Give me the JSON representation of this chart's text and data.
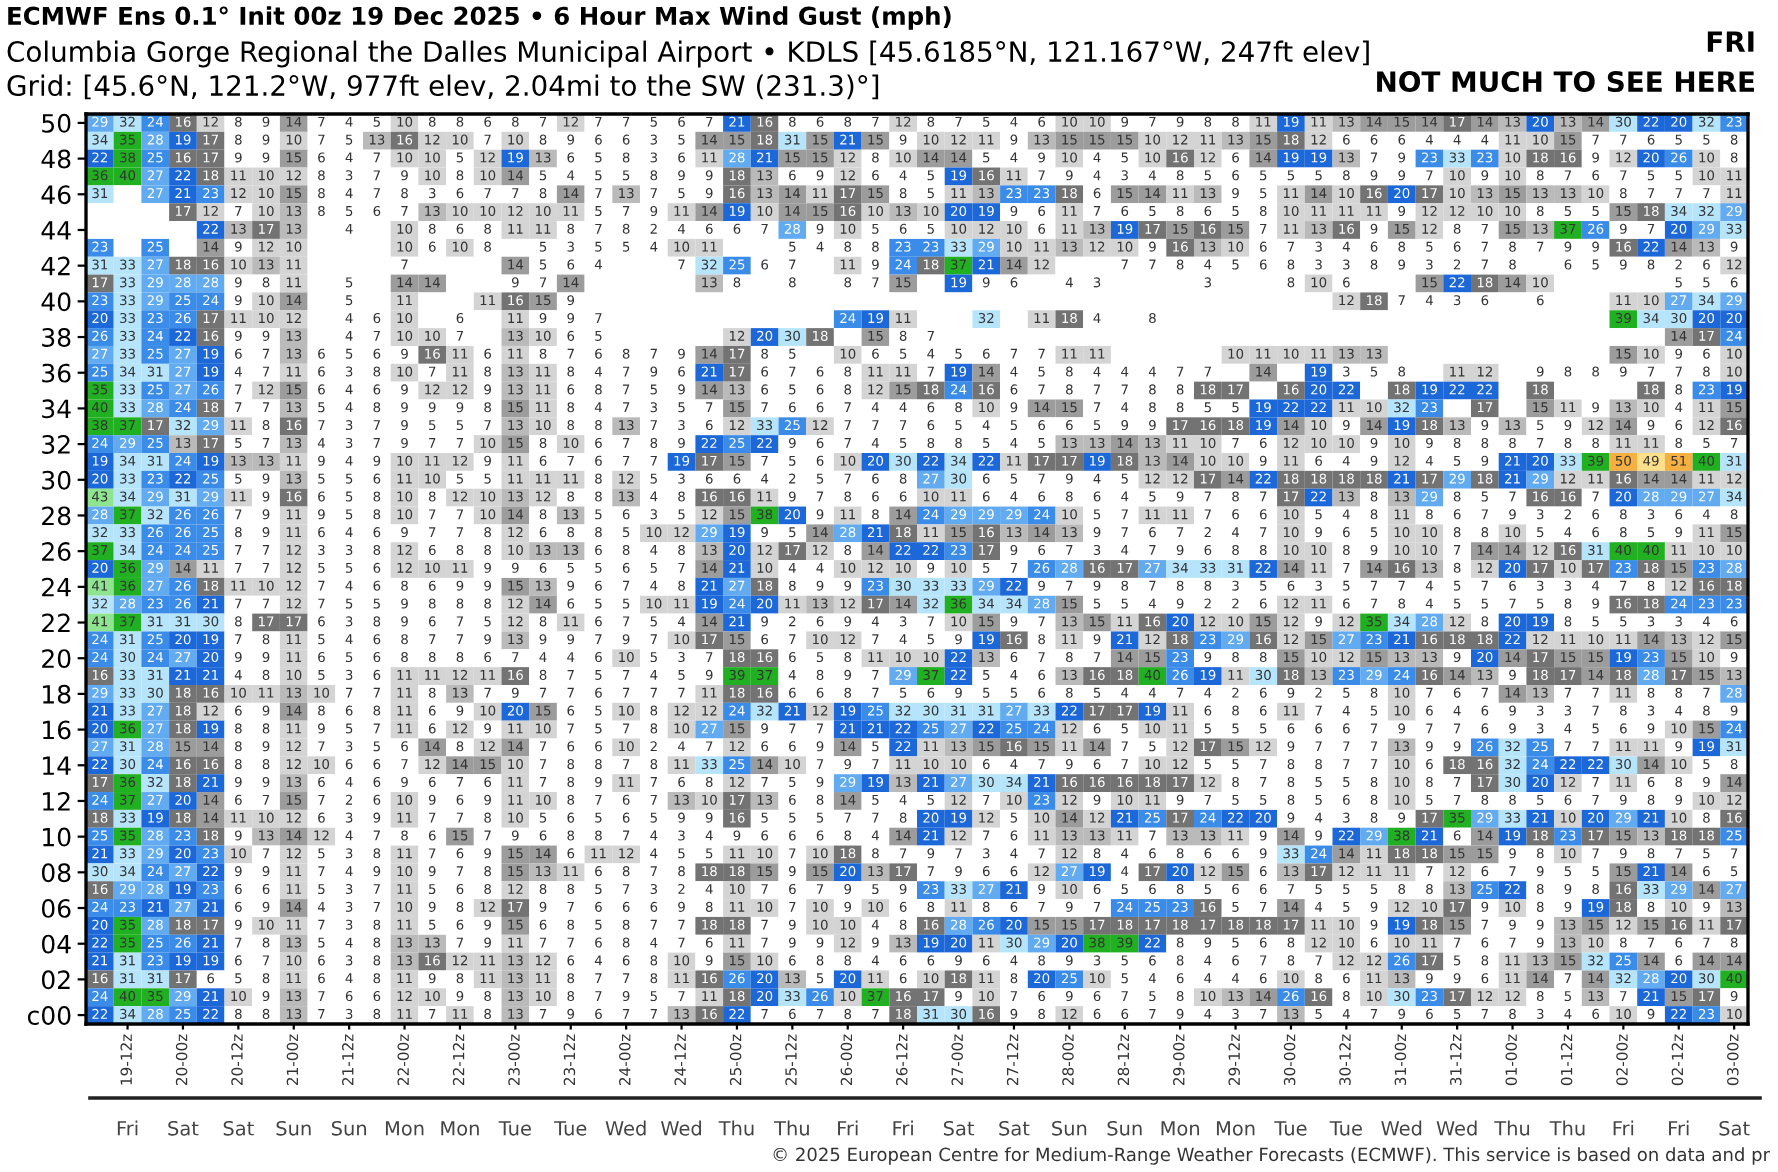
{
  "chart_data": {
    "type": "heatmap",
    "title": "ECMWF Ens 0.1° Init 00z 19 Dec 2025 • 6 Hour Max Wind Gust (mph)",
    "subtitle": "Columbia Gorge Regional the Dalles Municipal Airport • KDLS [45.6185°N, 121.167°W, 247ft elev]\nGrid: [45.6°N, 121.2°W, 977ft elev, 2.04mi to the SW (231.3)°]",
    "categories": [
      null,
      "19-12z",
      null,
      "20-00z",
      null,
      "20-12z",
      null,
      "21-00z",
      null,
      "21-12z",
      null,
      "22-00z",
      null,
      "22-12z",
      null,
      "23-00z",
      null,
      "23-12z",
      null,
      "24-00z",
      null,
      "24-12z",
      null,
      "25-00z",
      null,
      "25-12z",
      null,
      "26-00z",
      null,
      "26-12z",
      null,
      "27-00z",
      null,
      "27-12z",
      null,
      "28-00z",
      null,
      "28-12z",
      null,
      "29-00z",
      null,
      "29-12z",
      null,
      "30-00z",
      null,
      "30-12z",
      null,
      "31-00z",
      null,
      "31-12z",
      null,
      "01-00z",
      null,
      "01-12z",
      null,
      "02-00z",
      null,
      "02-12z",
      null,
      "03-00z"
    ],
    "y_categories": [
      "50",
      null,
      "48",
      null,
      "46",
      null,
      "44",
      null,
      "42",
      null,
      "40",
      null,
      "38",
      null,
      "36",
      null,
      "34",
      null,
      "32",
      null,
      "30",
      null,
      "28",
      null,
      "26",
      null,
      "24",
      null,
      "22",
      null,
      "20",
      null,
      "18",
      null,
      "16",
      null,
      "14",
      null,
      "12",
      null,
      "10",
      null,
      "08",
      null,
      "06",
      null,
      "04",
      null,
      "02",
      null,
      "c00"
    ],
    "data_labels": true,
    "cells": [
      [
        29,
        32,
        24,
        16,
        12,
        8,
        9,
        14,
        7,
        4,
        5,
        10,
        8,
        8,
        6,
        8,
        7,
        12,
        7,
        7,
        5,
        6,
        7,
        21,
        16,
        8,
        6,
        8,
        7,
        12,
        8,
        7,
        5,
        4,
        6,
        10,
        10,
        9,
        7,
        9,
        8,
        8,
        11,
        19,
        11,
        13,
        14,
        15,
        14,
        17,
        14,
        13,
        20,
        13,
        14,
        30,
        22,
        20,
        32,
        23
      ],
      [
        34,
        35,
        28,
        19,
        17,
        8,
        9,
        10,
        7,
        5,
        13,
        16,
        12,
        10,
        7,
        10,
        8,
        9,
        6,
        6,
        3,
        5,
        14,
        15,
        18,
        31,
        15,
        21,
        15,
        9,
        10,
        12,
        11,
        9,
        13,
        15,
        15,
        15,
        10,
        12,
        11,
        13,
        15,
        18,
        12,
        6,
        6,
        6,
        4,
        4,
        4,
        11,
        10,
        15,
        7,
        7,
        6,
        5,
        5,
        8
      ],
      [
        22,
        38,
        25,
        16,
        17,
        9,
        9,
        15,
        6,
        4,
        7,
        10,
        10,
        5,
        12,
        19,
        13,
        6,
        5,
        8,
        3,
        6,
        11,
        28,
        21,
        15,
        15,
        12,
        8,
        10,
        14,
        14,
        5,
        4,
        9,
        10,
        4,
        5,
        10,
        16,
        12,
        6,
        14,
        19,
        19,
        13,
        7,
        9,
        23,
        33,
        23,
        10,
        18,
        16,
        9,
        12,
        20,
        26,
        10,
        8
      ],
      [
        36,
        40,
        27,
        22,
        18,
        11,
        10,
        12,
        8,
        3,
        7,
        9,
        10,
        8,
        10,
        14,
        5,
        4,
        5,
        5,
        8,
        9,
        9,
        18,
        13,
        6,
        9,
        12,
        6,
        4,
        5,
        19,
        16,
        11,
        7,
        9,
        4,
        3,
        4,
        8,
        5,
        6,
        5,
        5,
        5,
        8,
        9,
        9,
        7,
        10,
        9,
        10,
        8,
        7,
        6,
        7,
        5,
        5,
        10,
        11
      ],
      [
        31,
        null,
        27,
        21,
        23,
        12,
        10,
        15,
        8,
        4,
        7,
        8,
        3,
        6,
        7,
        7,
        8,
        14,
        7,
        13,
        7,
        5,
        9,
        16,
        13,
        14,
        11,
        17,
        15,
        8,
        5,
        11,
        13,
        23,
        23,
        18,
        6,
        15,
        14,
        11,
        13,
        9,
        5,
        11,
        14,
        10,
        16,
        20,
        17,
        10,
        13,
        15,
        13,
        13,
        10,
        8,
        7,
        7,
        7,
        11
      ],
      [
        null,
        null,
        null,
        17,
        12,
        7,
        10,
        13,
        8,
        5,
        6,
        7,
        13,
        10,
        10,
        12,
        10,
        11,
        5,
        7,
        9,
        11,
        14,
        19,
        10,
        14,
        15,
        16,
        10,
        13,
        10,
        20,
        19,
        9,
        6,
        11,
        7,
        6,
        5,
        8,
        6,
        5,
        8,
        10,
        11,
        11,
        11,
        9,
        12,
        12,
        10,
        10,
        8,
        5,
        5,
        15,
        18,
        34,
        32,
        29
      ],
      [
        null,
        null,
        null,
        null,
        22,
        13,
        17,
        13,
        null,
        4,
        null,
        10,
        8,
        6,
        8,
        11,
        11,
        8,
        7,
        8,
        2,
        4,
        6,
        6,
        7,
        28,
        9,
        10,
        5,
        6,
        5,
        10,
        12,
        10,
        6,
        11,
        13,
        19,
        17,
        15,
        16,
        15,
        7,
        11,
        13,
        16,
        9,
        15,
        12,
        8,
        7,
        15,
        13,
        37,
        26,
        9,
        7,
        20,
        29,
        33
      ],
      [
        23,
        null,
        25,
        null,
        14,
        9,
        12,
        10,
        null,
        null,
        null,
        10,
        6,
        10,
        8,
        null,
        5,
        3,
        5,
        5,
        4,
        10,
        11,
        null,
        null,
        5,
        4,
        8,
        8,
        23,
        23,
        33,
        29,
        10,
        11,
        13,
        12,
        10,
        9,
        16,
        13,
        10,
        6,
        7,
        3,
        4,
        6,
        8,
        5,
        6,
        7,
        8,
        7,
        9,
        9,
        16,
        22,
        14,
        13,
        9
      ],
      [
        31,
        33,
        27,
        18,
        16,
        10,
        13,
        11,
        null,
        null,
        null,
        7,
        null,
        null,
        null,
        14,
        5,
        6,
        4,
        null,
        null,
        7,
        32,
        25,
        6,
        7,
        null,
        11,
        9,
        24,
        18,
        37,
        21,
        14,
        12,
        null,
        null,
        7,
        7,
        8,
        4,
        5,
        6,
        8,
        3,
        3,
        8,
        9,
        3,
        2,
        7,
        8,
        null,
        6,
        5,
        9,
        8,
        2,
        6,
        12
      ],
      [
        17,
        33,
        29,
        28,
        28,
        9,
        8,
        11,
        null,
        5,
        null,
        14,
        14,
        null,
        null,
        9,
        7,
        14,
        null,
        null,
        null,
        null,
        13,
        8,
        null,
        8,
        null,
        8,
        7,
        15,
        null,
        19,
        9,
        6,
        null,
        4,
        3,
        null,
        null,
        null,
        3,
        null,
        null,
        8,
        10,
        6,
        null,
        null,
        15,
        22,
        18,
        14,
        10,
        null,
        null,
        null,
        null,
        5,
        5,
        6
      ],
      [
        23,
        33,
        29,
        25,
        24,
        9,
        10,
        14,
        null,
        5,
        null,
        11,
        null,
        null,
        11,
        16,
        15,
        9,
        null,
        null,
        null,
        null,
        null,
        null,
        null,
        null,
        null,
        null,
        null,
        null,
        null,
        null,
        null,
        null,
        null,
        null,
        null,
        null,
        null,
        null,
        null,
        null,
        null,
        null,
        null,
        12,
        18,
        7,
        4,
        3,
        6,
        null,
        6,
        null,
        null,
        11,
        10,
        27,
        34,
        29
      ],
      [
        20,
        33,
        23,
        26,
        17,
        11,
        10,
        12,
        null,
        4,
        6,
        10,
        null,
        6,
        null,
        11,
        9,
        9,
        7,
        null,
        null,
        null,
        null,
        null,
        null,
        null,
        null,
        24,
        19,
        11,
        null,
        null,
        32,
        null,
        11,
        18,
        4,
        null,
        8,
        null,
        null,
        null,
        null,
        null,
        null,
        null,
        null,
        null,
        null,
        null,
        null,
        null,
        null,
        null,
        null,
        39,
        34,
        30,
        20,
        20
      ],
      [
        26,
        33,
        24,
        22,
        16,
        9,
        9,
        13,
        null,
        4,
        7,
        10,
        10,
        7,
        null,
        13,
        10,
        6,
        5,
        null,
        null,
        null,
        null,
        12,
        20,
        30,
        18,
        null,
        15,
        8,
        7,
        null,
        null,
        null,
        null,
        null,
        null,
        null,
        null,
        null,
        null,
        null,
        null,
        null,
        null,
        null,
        null,
        null,
        null,
        null,
        null,
        null,
        null,
        null,
        null,
        null,
        null,
        14,
        17,
        24
      ],
      [
        27,
        33,
        25,
        27,
        19,
        6,
        7,
        13,
        6,
        5,
        6,
        9,
        16,
        11,
        6,
        11,
        8,
        7,
        6,
        8,
        7,
        9,
        14,
        17,
        8,
        5,
        null,
        10,
        6,
        5,
        4,
        5,
        6,
        7,
        7,
        11,
        11,
        null,
        null,
        null,
        null,
        10,
        11,
        10,
        11,
        13,
        13,
        null,
        null,
        null,
        null,
        null,
        null,
        null,
        null,
        15,
        10,
        9,
        6,
        10
      ],
      [
        25,
        34,
        31,
        27,
        19,
        4,
        7,
        11,
        6,
        3,
        8,
        10,
        7,
        11,
        8,
        13,
        11,
        8,
        4,
        7,
        9,
        6,
        21,
        17,
        6,
        7,
        6,
        8,
        11,
        11,
        7,
        19,
        14,
        4,
        5,
        8,
        4,
        4,
        4,
        7,
        7,
        null,
        14,
        null,
        19,
        3,
        5,
        8,
        null,
        11,
        12,
        null,
        9,
        8,
        8,
        9,
        7,
        7,
        8,
        10
      ],
      [
        35,
        33,
        25,
        27,
        26,
        7,
        12,
        15,
        6,
        4,
        6,
        9,
        12,
        12,
        9,
        13,
        11,
        6,
        8,
        7,
        5,
        9,
        14,
        13,
        6,
        5,
        6,
        8,
        12,
        15,
        18,
        24,
        16,
        6,
        7,
        8,
        7,
        7,
        8,
        8,
        18,
        17,
        null,
        16,
        20,
        22,
        null,
        18,
        19,
        22,
        22,
        null,
        18,
        null,
        null,
        null,
        18,
        8,
        23,
        19
      ],
      [
        40,
        33,
        28,
        24,
        18,
        7,
        7,
        13,
        5,
        4,
        8,
        9,
        9,
        9,
        8,
        15,
        11,
        8,
        4,
        7,
        3,
        5,
        7,
        15,
        7,
        6,
        6,
        7,
        4,
        4,
        6,
        8,
        10,
        9,
        14,
        15,
        7,
        4,
        8,
        8,
        5,
        5,
        19,
        22,
        22,
        11,
        10,
        32,
        23,
        null,
        17,
        null,
        15,
        11,
        9,
        13,
        10,
        4,
        11,
        15
      ],
      [
        38,
        37,
        17,
        32,
        29,
        11,
        8,
        16,
        7,
        3,
        7,
        9,
        5,
        5,
        7,
        13,
        10,
        8,
        8,
        13,
        7,
        3,
        6,
        12,
        33,
        25,
        12,
        7,
        7,
        7,
        6,
        5,
        4,
        5,
        6,
        6,
        5,
        9,
        9,
        17,
        16,
        18,
        19,
        14,
        10,
        9,
        14,
        19,
        18,
        13,
        9,
        13,
        5,
        9,
        12,
        14,
        9,
        6,
        12,
        16
      ],
      [
        24,
        29,
        25,
        13,
        17,
        5,
        7,
        13,
        4,
        3,
        7,
        9,
        7,
        7,
        10,
        15,
        8,
        10,
        6,
        7,
        8,
        9,
        22,
        25,
        22,
        9,
        6,
        7,
        4,
        5,
        8,
        8,
        5,
        4,
        5,
        13,
        13,
        14,
        13,
        11,
        10,
        7,
        6,
        12,
        10,
        10,
        9,
        10,
        9,
        8,
        8,
        8,
        7,
        8,
        8,
        11,
        11,
        8,
        5,
        7
      ],
      [
        19,
        34,
        31,
        24,
        19,
        13,
        13,
        11,
        9,
        4,
        9,
        10,
        11,
        12,
        9,
        11,
        6,
        7,
        6,
        7,
        7,
        19,
        17,
        15,
        7,
        5,
        6,
        10,
        20,
        30,
        22,
        34,
        22,
        11,
        17,
        17,
        19,
        18,
        13,
        14,
        10,
        10,
        9,
        11,
        6,
        4,
        9,
        12,
        4,
        5,
        9,
        21,
        20,
        33,
        39,
        50,
        49,
        51,
        40,
        31
      ],
      [
        20,
        33,
        23,
        22,
        25,
        5,
        9,
        13,
        5,
        5,
        6,
        11,
        10,
        5,
        5,
        11,
        11,
        11,
        8,
        12,
        5,
        3,
        6,
        6,
        4,
        2,
        5,
        7,
        6,
        8,
        27,
        30,
        6,
        5,
        7,
        9,
        4,
        5,
        12,
        12,
        17,
        14,
        22,
        18,
        18,
        18,
        18,
        21,
        17,
        29,
        18,
        21,
        29,
        12,
        11,
        16,
        14,
        14,
        11,
        12
      ],
      [
        43,
        34,
        29,
        31,
        29,
        11,
        9,
        16,
        6,
        5,
        8,
        10,
        8,
        12,
        10,
        13,
        12,
        8,
        8,
        13,
        4,
        8,
        16,
        16,
        11,
        9,
        7,
        8,
        6,
        6,
        10,
        11,
        6,
        4,
        6,
        8,
        6,
        4,
        5,
        9,
        7,
        8,
        7,
        17,
        22,
        13,
        8,
        13,
        29,
        8,
        5,
        7,
        16,
        16,
        7,
        20,
        28,
        29,
        27,
        34
      ],
      [
        28,
        37,
        32,
        26,
        26,
        7,
        9,
        11,
        9,
        5,
        8,
        10,
        7,
        7,
        10,
        14,
        8,
        13,
        5,
        6,
        3,
        5,
        12,
        15,
        38,
        20,
        9,
        11,
        8,
        14,
        24,
        29,
        29,
        29,
        24,
        10,
        5,
        7,
        11,
        11,
        7,
        6,
        6,
        10,
        5,
        4,
        8,
        11,
        8,
        6,
        7,
        9,
        3,
        2,
        6,
        8,
        3,
        6,
        4,
        8
      ],
      [
        32,
        33,
        26,
        26,
        25,
        8,
        9,
        11,
        6,
        4,
        6,
        9,
        7,
        7,
        8,
        12,
        6,
        8,
        8,
        5,
        10,
        12,
        29,
        19,
        9,
        5,
        14,
        28,
        21,
        18,
        11,
        15,
        16,
        13,
        14,
        13,
        9,
        7,
        6,
        7,
        2,
        4,
        7,
        10,
        9,
        6,
        5,
        10,
        10,
        8,
        8,
        10,
        5,
        4,
        6,
        8,
        5,
        9,
        11,
        15
      ],
      [
        37,
        34,
        24,
        24,
        25,
        7,
        7,
        12,
        3,
        3,
        8,
        12,
        6,
        8,
        8,
        10,
        13,
        13,
        6,
        8,
        4,
        8,
        13,
        20,
        12,
        17,
        12,
        8,
        14,
        22,
        22,
        23,
        17,
        9,
        6,
        7,
        3,
        4,
        7,
        9,
        6,
        8,
        8,
        10,
        10,
        8,
        9,
        10,
        10,
        7,
        14,
        14,
        12,
        16,
        31,
        40,
        40,
        11,
        10,
        10
      ],
      [
        20,
        36,
        29,
        14,
        11,
        7,
        7,
        12,
        5,
        5,
        6,
        12,
        10,
        11,
        9,
        9,
        6,
        5,
        5,
        6,
        5,
        7,
        14,
        21,
        10,
        4,
        4,
        10,
        12,
        10,
        9,
        10,
        5,
        7,
        26,
        28,
        16,
        17,
        27,
        34,
        33,
        31,
        22,
        14,
        11,
        7,
        14,
        16,
        13,
        8,
        12,
        20,
        17,
        10,
        17,
        23,
        18,
        15,
        23,
        28
      ],
      [
        41,
        36,
        27,
        26,
        18,
        11,
        10,
        12,
        7,
        4,
        6,
        8,
        6,
        9,
        9,
        15,
        13,
        9,
        6,
        7,
        4,
        8,
        21,
        27,
        18,
        8,
        9,
        9,
        23,
        30,
        33,
        33,
        29,
        22,
        9,
        7,
        9,
        8,
        7,
        8,
        8,
        3,
        5,
        6,
        3,
        5,
        7,
        7,
        4,
        5,
        7,
        6,
        3,
        3,
        4,
        7,
        8,
        12,
        16,
        18
      ],
      [
        32,
        28,
        23,
        26,
        21,
        7,
        7,
        12,
        7,
        5,
        5,
        9,
        8,
        8,
        8,
        12,
        14,
        6,
        5,
        5,
        10,
        11,
        19,
        24,
        20,
        11,
        13,
        12,
        17,
        14,
        32,
        36,
        34,
        34,
        28,
        15,
        5,
        5,
        4,
        9,
        2,
        2,
        6,
        12,
        11,
        6,
        7,
        8,
        4,
        5,
        5,
        7,
        5,
        8,
        9,
        16,
        18,
        24,
        23,
        23
      ],
      [
        41,
        37,
        31,
        31,
        30,
        8,
        17,
        17,
        6,
        3,
        8,
        9,
        6,
        7,
        5,
        12,
        8,
        11,
        6,
        7,
        5,
        4,
        14,
        21,
        9,
        2,
        6,
        9,
        4,
        3,
        7,
        10,
        15,
        9,
        7,
        13,
        15,
        11,
        16,
        20,
        12,
        10,
        15,
        12,
        9,
        12,
        35,
        34,
        28,
        12,
        8,
        20,
        19,
        8,
        5,
        5,
        3,
        3,
        4,
        6
      ],
      [
        24,
        31,
        25,
        20,
        19,
        7,
        8,
        11,
        5,
        4,
        6,
        8,
        7,
        7,
        9,
        13,
        9,
        9,
        7,
        9,
        7,
        10,
        17,
        15,
        6,
        7,
        10,
        12,
        7,
        4,
        5,
        9,
        19,
        16,
        8,
        11,
        9,
        21,
        12,
        18,
        23,
        29,
        16,
        12,
        15,
        27,
        23,
        21,
        16,
        18,
        18,
        22,
        12,
        11,
        10,
        11,
        14,
        13,
        12,
        15
      ],
      [
        24,
        30,
        24,
        27,
        20,
        9,
        9,
        11,
        6,
        5,
        6,
        8,
        8,
        8,
        6,
        7,
        4,
        4,
        6,
        10,
        5,
        3,
        7,
        18,
        16,
        6,
        5,
        8,
        11,
        10,
        10,
        22,
        13,
        6,
        7,
        8,
        7,
        14,
        15,
        23,
        9,
        8,
        8,
        15,
        10,
        12,
        15,
        13,
        13,
        9,
        20,
        14,
        17,
        15,
        15,
        19,
        23,
        15,
        10,
        9
      ],
      [
        16,
        33,
        31,
        21,
        21,
        4,
        8,
        10,
        5,
        3,
        6,
        11,
        11,
        12,
        11,
        16,
        8,
        7,
        5,
        7,
        4,
        5,
        9,
        39,
        37,
        4,
        8,
        9,
        7,
        29,
        37,
        22,
        5,
        4,
        6,
        13,
        16,
        18,
        40,
        26,
        19,
        11,
        30,
        18,
        13,
        23,
        29,
        24,
        16,
        14,
        13,
        9,
        18,
        17,
        14,
        18,
        28,
        17,
        15,
        13
      ],
      [
        29,
        33,
        30,
        18,
        16,
        10,
        11,
        13,
        10,
        7,
        7,
        11,
        8,
        13,
        7,
        9,
        7,
        7,
        6,
        7,
        7,
        7,
        11,
        18,
        16,
        6,
        6,
        8,
        7,
        5,
        6,
        9,
        5,
        5,
        6,
        8,
        5,
        4,
        4,
        7,
        4,
        2,
        6,
        9,
        2,
        5,
        8,
        10,
        7,
        6,
        7,
        14,
        13,
        7,
        7,
        11,
        8,
        8,
        7,
        28
      ],
      [
        21,
        33,
        27,
        18,
        12,
        6,
        9,
        14,
        8,
        6,
        8,
        11,
        6,
        9,
        10,
        20,
        15,
        6,
        5,
        10,
        8,
        12,
        12,
        24,
        32,
        21,
        12,
        19,
        25,
        32,
        30,
        31,
        31,
        27,
        33,
        22,
        17,
        17,
        19,
        11,
        6,
        8,
        6,
        11,
        7,
        4,
        5,
        10,
        6,
        4,
        6,
        9,
        3,
        3,
        7,
        8,
        3,
        4,
        8,
        9
      ],
      [
        20,
        36,
        27,
        18,
        19,
        8,
        8,
        11,
        9,
        5,
        7,
        11,
        6,
        12,
        9,
        11,
        10,
        7,
        5,
        7,
        8,
        10,
        27,
        15,
        9,
        7,
        7,
        21,
        21,
        22,
        25,
        27,
        22,
        25,
        24,
        12,
        6,
        5,
        10,
        11,
        5,
        5,
        5,
        6,
        6,
        6,
        7,
        9,
        7,
        7,
        6,
        9,
        3,
        4,
        5,
        6,
        9,
        10,
        15,
        24
      ],
      [
        27,
        31,
        28,
        15,
        14,
        8,
        9,
        12,
        7,
        3,
        5,
        6,
        14,
        8,
        12,
        14,
        7,
        6,
        6,
        10,
        2,
        4,
        7,
        12,
        6,
        6,
        9,
        14,
        5,
        22,
        11,
        13,
        15,
        16,
        15,
        11,
        14,
        7,
        5,
        12,
        17,
        15,
        12,
        9,
        7,
        7,
        7,
        13,
        9,
        9,
        26,
        32,
        25,
        7,
        7,
        11,
        11,
        9,
        19,
        31
      ],
      [
        22,
        30,
        24,
        16,
        16,
        8,
        8,
        12,
        10,
        6,
        6,
        7,
        12,
        14,
        15,
        10,
        7,
        8,
        8,
        7,
        8,
        11,
        33,
        25,
        14,
        10,
        7,
        9,
        7,
        11,
        10,
        10,
        6,
        4,
        7,
        9,
        6,
        7,
        10,
        12,
        5,
        5,
        7,
        8,
        8,
        7,
        7,
        10,
        6,
        18,
        16,
        32,
        24,
        22,
        22,
        30,
        14,
        10,
        5,
        8
      ],
      [
        17,
        36,
        32,
        18,
        21,
        9,
        9,
        13,
        6,
        4,
        6,
        9,
        6,
        7,
        6,
        11,
        7,
        8,
        9,
        11,
        7,
        6,
        8,
        12,
        7,
        5,
        9,
        29,
        19,
        13,
        21,
        27,
        30,
        34,
        21,
        16,
        16,
        16,
        18,
        17,
        12,
        8,
        7,
        8,
        5,
        5,
        8,
        10,
        8,
        7,
        17,
        30,
        20,
        12,
        7,
        11,
        6,
        8,
        9,
        14
      ],
      [
        24,
        37,
        27,
        20,
        14,
        6,
        7,
        15,
        7,
        2,
        6,
        10,
        9,
        6,
        9,
        11,
        10,
        8,
        7,
        6,
        7,
        13,
        10,
        17,
        13,
        6,
        8,
        14,
        5,
        4,
        5,
        12,
        7,
        10,
        23,
        12,
        9,
        10,
        11,
        9,
        7,
        5,
        5,
        8,
        5,
        6,
        8,
        10,
        5,
        7,
        8,
        8,
        5,
        6,
        7,
        9,
        8,
        9,
        10,
        12
      ],
      [
        18,
        33,
        19,
        18,
        14,
        11,
        10,
        12,
        6,
        3,
        9,
        11,
        7,
        7,
        8,
        10,
        5,
        6,
        5,
        6,
        5,
        9,
        9,
        16,
        5,
        5,
        5,
        7,
        7,
        8,
        20,
        19,
        12,
        5,
        10,
        14,
        12,
        21,
        25,
        17,
        24,
        22,
        20,
        9,
        4,
        3,
        8,
        9,
        17,
        35,
        29,
        33,
        21,
        10,
        20,
        29,
        21,
        10,
        8,
        16
      ],
      [
        25,
        35,
        28,
        23,
        18,
        9,
        13,
        14,
        12,
        4,
        7,
        8,
        6,
        15,
        7,
        9,
        6,
        8,
        8,
        7,
        4,
        3,
        4,
        9,
        6,
        6,
        6,
        8,
        4,
        14,
        21,
        12,
        7,
        6,
        11,
        13,
        13,
        11,
        7,
        13,
        13,
        11,
        9,
        14,
        9,
        22,
        29,
        38,
        21,
        6,
        14,
        19,
        18,
        23,
        17,
        15,
        13,
        18,
        18,
        25
      ],
      [
        21,
        33,
        29,
        20,
        23,
        10,
        7,
        12,
        5,
        3,
        8,
        11,
        7,
        6,
        9,
        15,
        14,
        6,
        11,
        12,
        4,
        5,
        5,
        11,
        10,
        7,
        10,
        18,
        8,
        7,
        9,
        7,
        3,
        4,
        7,
        12,
        8,
        4,
        6,
        8,
        6,
        6,
        9,
        33,
        24,
        14,
        11,
        18,
        18,
        15,
        15,
        9,
        8,
        10,
        7,
        9,
        8,
        7,
        5,
        7
      ],
      [
        30,
        34,
        24,
        27,
        22,
        9,
        9,
        11,
        7,
        4,
        9,
        10,
        9,
        7,
        8,
        15,
        13,
        11,
        6,
        8,
        7,
        8,
        18,
        18,
        15,
        9,
        15,
        20,
        13,
        17,
        7,
        9,
        6,
        6,
        12,
        27,
        19,
        4,
        17,
        20,
        12,
        15,
        6,
        13,
        17,
        12,
        11,
        11,
        7,
        12,
        6,
        7,
        9,
        5,
        5,
        15,
        21,
        14,
        6,
        5
      ],
      [
        16,
        29,
        28,
        19,
        23,
        6,
        6,
        11,
        5,
        3,
        7,
        11,
        5,
        6,
        8,
        12,
        8,
        8,
        5,
        7,
        3,
        2,
        4,
        10,
        7,
        6,
        7,
        9,
        5,
        9,
        23,
        33,
        27,
        21,
        9,
        10,
        6,
        5,
        6,
        8,
        5,
        6,
        6,
        7,
        5,
        5,
        5,
        8,
        8,
        13,
        25,
        22,
        8,
        9,
        8,
        16,
        33,
        29,
        14,
        27
      ],
      [
        24,
        23,
        21,
        27,
        21,
        6,
        9,
        14,
        4,
        3,
        7,
        10,
        9,
        8,
        12,
        17,
        9,
        7,
        6,
        6,
        6,
        9,
        8,
        11,
        10,
        7,
        10,
        9,
        10,
        6,
        8,
        11,
        8,
        6,
        7,
        9,
        7,
        24,
        25,
        23,
        16,
        5,
        7,
        14,
        4,
        5,
        9,
        12,
        10,
        17,
        9,
        10,
        8,
        9,
        19,
        18,
        8,
        10,
        9,
        13
      ],
      [
        20,
        35,
        28,
        18,
        17,
        9,
        10,
        11,
        7,
        3,
        8,
        11,
        5,
        6,
        9,
        15,
        6,
        8,
        5,
        8,
        7,
        7,
        18,
        18,
        7,
        9,
        10,
        10,
        4,
        8,
        16,
        28,
        26,
        20,
        15,
        15,
        17,
        18,
        17,
        18,
        17,
        18,
        18,
        17,
        11,
        10,
        9,
        19,
        18,
        15,
        7,
        9,
        9,
        13,
        15,
        12,
        15,
        16,
        11,
        17
      ],
      [
        22,
        35,
        25,
        26,
        21,
        7,
        8,
        13,
        5,
        4,
        8,
        13,
        13,
        7,
        9,
        11,
        7,
        7,
        6,
        8,
        4,
        7,
        6,
        11,
        7,
        9,
        9,
        12,
        9,
        13,
        19,
        20,
        11,
        30,
        29,
        20,
        38,
        39,
        22,
        8,
        9,
        5,
        6,
        8,
        12,
        10,
        6,
        10,
        11,
        7,
        6,
        7,
        9,
        13,
        10,
        8,
        7,
        6,
        7,
        8
      ],
      [
        21,
        31,
        23,
        19,
        19,
        6,
        7,
        10,
        6,
        3,
        8,
        13,
        16,
        12,
        11,
        13,
        12,
        6,
        4,
        6,
        8,
        10,
        9,
        15,
        10,
        6,
        8,
        8,
        4,
        6,
        6,
        9,
        6,
        4,
        8,
        9,
        3,
        5,
        6,
        8,
        4,
        6,
        7,
        8,
        7,
        12,
        12,
        26,
        17,
        5,
        8,
        11,
        13,
        15,
        32,
        25,
        14,
        6,
        14,
        14
      ],
      [
        16,
        31,
        31,
        17,
        6,
        5,
        8,
        11,
        6,
        4,
        8,
        11,
        9,
        8,
        11,
        13,
        11,
        8,
        7,
        7,
        8,
        11,
        16,
        26,
        20,
        13,
        5,
        20,
        11,
        6,
        10,
        18,
        11,
        8,
        20,
        25,
        10,
        5,
        4,
        6,
        4,
        4,
        6,
        10,
        8,
        6,
        11,
        13,
        9,
        9,
        6,
        11,
        14,
        7,
        14,
        32,
        28,
        20,
        30,
        40
      ],
      [
        24,
        40,
        35,
        29,
        21,
        10,
        9,
        13,
        7,
        6,
        6,
        12,
        10,
        9,
        8,
        13,
        10,
        8,
        7,
        9,
        5,
        7,
        11,
        18,
        20,
        33,
        26,
        10,
        37,
        16,
        17,
        9,
        10,
        7,
        6,
        9,
        6,
        7,
        5,
        8,
        10,
        13,
        14,
        26,
        16,
        8,
        10,
        30,
        23,
        17,
        12,
        12,
        8,
        5,
        13,
        7,
        21,
        15,
        17,
        9
      ],
      [
        22,
        34,
        28,
        25,
        22,
        8,
        8,
        13,
        7,
        3,
        8,
        11,
        7,
        11,
        8,
        13,
        7,
        9,
        6,
        7,
        7,
        13,
        16,
        22,
        7,
        6,
        7,
        8,
        7,
        18,
        31,
        30,
        16,
        9,
        8,
        12,
        6,
        6,
        7,
        9,
        4,
        3,
        7,
        13,
        5,
        4,
        7,
        9,
        6,
        5,
        7,
        8,
        3,
        4,
        6,
        10,
        9,
        22,
        23,
        10
      ]
    ],
    "annotations": [
      "Fri",
      "Sat",
      "Sat",
      "Sun",
      "Sun",
      "Mon",
      "Mon",
      "Tue",
      "Tue",
      "Wed",
      "Wed",
      "Thu",
      "Thu",
      "Fri",
      "Fri",
      "Sat",
      "Sat",
      "Sun",
      "Sun",
      "Mon",
      "Mon",
      "Tue",
      "Tue",
      "Wed",
      "Wed",
      "Thu",
      "Thu",
      "Fri",
      "Fri",
      "Sat",
      "FRI",
      "NOT MUCH TO SEE HERE",
      "© 2025 European Centre for Medium-Range Weather Forecasts (ECMWF). This service is based on data and pr"
    ]
  }
}
